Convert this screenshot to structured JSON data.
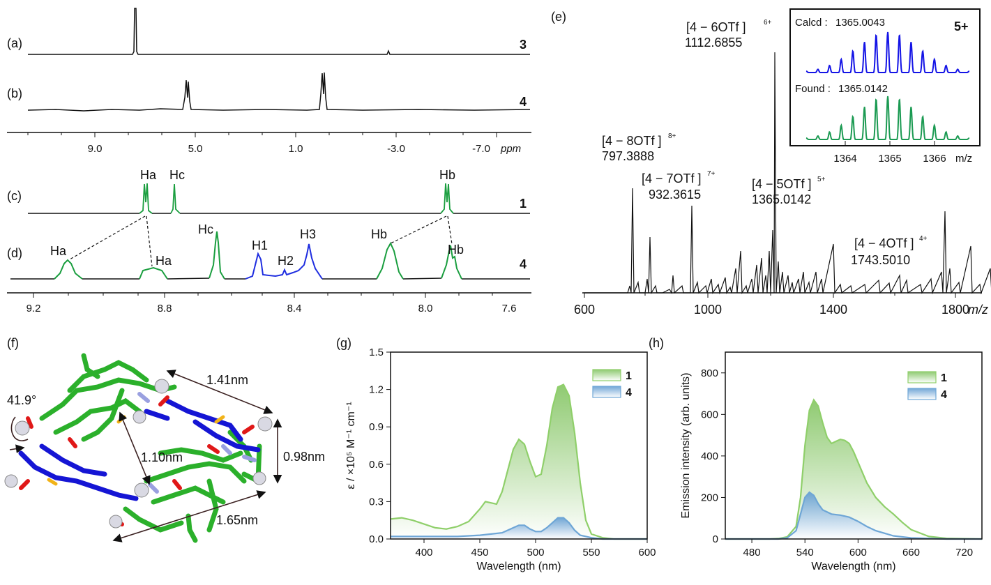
{
  "colors": {
    "green": "#1a9e3f",
    "blue": "#1f2ee0",
    "insetBlue": "#1414e6",
    "insetGreen": "#1b9a52",
    "absGreen": "#8fcf6a",
    "absBlue": "#6ea6d6"
  },
  "nmr_top": {
    "labels": [
      "(a)",
      "(b)"
    ],
    "compounds": [
      "3",
      "4"
    ],
    "ticks": [
      "9.0",
      "5.0",
      "1.0",
      "-3.0",
      "-7.0"
    ],
    "unit": "ppm"
  },
  "nmr_bottom": {
    "labels": [
      "(c)",
      "(d)"
    ],
    "compounds": [
      "1",
      "4"
    ],
    "ticks": [
      "9.2",
      "8.8",
      "8.4",
      "8.0",
      "7.6"
    ],
    "unit": "ppm",
    "peak_labels_c": [
      "Ha",
      "Hc",
      "Hb"
    ],
    "peak_labels_d": [
      "Ha",
      "Ha",
      "Hc",
      "H1",
      "H2",
      "H3",
      "Hb",
      "Hb"
    ]
  },
  "ms": {
    "panel": "(e)",
    "ticks": [
      "600",
      "1000",
      "1400",
      "1800"
    ],
    "xlabel": "m/z",
    "annotations": [
      {
        "species": "[4 − 6OTf ]",
        "charge": "6+",
        "mz": "1112.6855"
      },
      {
        "species": "[4 − 8OTf ]",
        "charge": "8+",
        "mz": "797.3888"
      },
      {
        "species": "[4 − 7OTf ]",
        "charge": "7+",
        "mz": "932.3615"
      },
      {
        "species": "[4 − 5OTf ]",
        "charge": "5+",
        "mz": "1365.0142"
      },
      {
        "species": "[4 − 4OTf ]",
        "charge": "4+",
        "mz": "1743.5010"
      }
    ],
    "inset": {
      "charge": "5+",
      "calcd_label": "Calcd :",
      "calcd_value": "1365.0043",
      "found_label": "Found :",
      "found_value": "1365.0142",
      "ticks": [
        "1364",
        "1365",
        "1366"
      ],
      "xlabel": "m/z"
    }
  },
  "structure": {
    "panel": "(f)",
    "angle": "41.9°",
    "dims": [
      "1.41nm",
      "1.10nm",
      "0.98nm",
      "1.65nm"
    ]
  },
  "chart_data": [
    {
      "panel": "(g)",
      "type": "area",
      "xlabel": "Wavelength (nm)",
      "ylabel": "ε / ×10⁵ M⁻¹ cm⁻¹",
      "xlim": [
        370,
        600
      ],
      "ylim": [
        0,
        1.5
      ],
      "xticks": [
        400,
        450,
        500,
        550,
        600
      ],
      "yticks": [
        "0.0",
        "0.3",
        "0.6",
        "0.9",
        "1.2",
        "1.5"
      ],
      "legend_position": "top-right",
      "series": [
        {
          "name": "1",
          "x": [
            370,
            380,
            390,
            400,
            410,
            420,
            430,
            440,
            450,
            455,
            460,
            465,
            470,
            475,
            480,
            485,
            490,
            495,
            500,
            505,
            510,
            515,
            520,
            525,
            530,
            535,
            540,
            545,
            550,
            560,
            570,
            580,
            600
          ],
          "values": [
            0.16,
            0.17,
            0.15,
            0.12,
            0.09,
            0.08,
            0.1,
            0.14,
            0.24,
            0.3,
            0.29,
            0.28,
            0.38,
            0.55,
            0.72,
            0.8,
            0.76,
            0.62,
            0.5,
            0.52,
            0.75,
            1.05,
            1.22,
            1.24,
            1.15,
            0.85,
            0.45,
            0.15,
            0.04,
            0.01,
            0.0,
            0.0,
            0.0
          ]
        },
        {
          "name": "4",
          "x": [
            370,
            400,
            430,
            450,
            460,
            470,
            480,
            485,
            490,
            495,
            500,
            505,
            510,
            515,
            520,
            525,
            530,
            535,
            540,
            550,
            560,
            600
          ],
          "values": [
            0.02,
            0.02,
            0.02,
            0.03,
            0.04,
            0.05,
            0.09,
            0.11,
            0.11,
            0.08,
            0.06,
            0.06,
            0.09,
            0.13,
            0.17,
            0.17,
            0.13,
            0.07,
            0.03,
            0.01,
            0.0,
            0.0
          ]
        }
      ]
    },
    {
      "panel": "(h)",
      "type": "area",
      "xlabel": "Wavelength (nm)",
      "ylabel": "Emission intensity (arb. units)",
      "xlim": [
        450,
        740
      ],
      "ylim": [
        0,
        900
      ],
      "xticks": [
        480,
        540,
        600,
        660,
        720
      ],
      "yticks": [
        "0",
        "200",
        "400",
        "600",
        "800"
      ],
      "legend_position": "top-right",
      "series": [
        {
          "name": "1",
          "x": [
            450,
            500,
            510,
            520,
            530,
            535,
            540,
            545,
            550,
            555,
            560,
            565,
            570,
            575,
            580,
            585,
            590,
            595,
            600,
            610,
            620,
            630,
            640,
            650,
            660,
            680,
            700,
            740
          ],
          "values": [
            0,
            0,
            2,
            10,
            60,
            200,
            450,
            620,
            670,
            640,
            560,
            490,
            460,
            470,
            480,
            475,
            460,
            420,
            370,
            270,
            200,
            155,
            120,
            80,
            45,
            12,
            3,
            0
          ]
        },
        {
          "name": "4",
          "x": [
            450,
            510,
            520,
            530,
            535,
            540,
            545,
            550,
            555,
            560,
            570,
            580,
            590,
            600,
            610,
            620,
            640,
            660,
            700,
            740
          ],
          "values": [
            0,
            0,
            5,
            40,
            120,
            200,
            225,
            210,
            170,
            140,
            120,
            115,
            105,
            85,
            60,
            40,
            15,
            5,
            0,
            0
          ]
        }
      ]
    }
  ]
}
